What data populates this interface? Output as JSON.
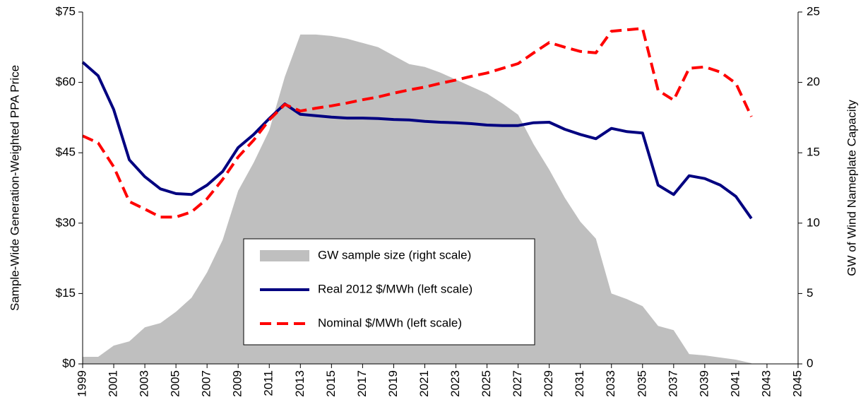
{
  "chart_data": {
    "type": "line-area",
    "y_label": "Sample-Wide Generation-Weighted PPA Price",
    "y2_label": "GW of Wind Nameplate Capacity",
    "x": [
      1999,
      2000,
      2001,
      2002,
      2003,
      2004,
      2005,
      2006,
      2007,
      2008,
      2009,
      2010,
      2011,
      2012,
      2013,
      2014,
      2015,
      2016,
      2017,
      2018,
      2019,
      2020,
      2021,
      2022,
      2023,
      2024,
      2025,
      2026,
      2027,
      2028,
      2029,
      2030,
      2031,
      2032,
      2033,
      2034,
      2035,
      2036,
      2037,
      2038,
      2039,
      2040,
      2041,
      2042
    ],
    "xlim": [
      1999,
      2045
    ],
    "xticks": [
      1999,
      2001,
      2003,
      2005,
      2007,
      2009,
      2011,
      2013,
      2015,
      2017,
      2019,
      2021,
      2023,
      2025,
      2027,
      2029,
      2031,
      2033,
      2035,
      2037,
      2039,
      2041,
      2043,
      2045
    ],
    "ylim": [
      0,
      75
    ],
    "yticks": [
      {
        "value": 0,
        "label": "$0"
      },
      {
        "value": 15,
        "label": "$15"
      },
      {
        "value": 30,
        "label": "$30"
      },
      {
        "value": 45,
        "label": "$45"
      },
      {
        "value": 60,
        "label": "$60"
      },
      {
        "value": 75,
        "label": "$75"
      }
    ],
    "y2lim": [
      0,
      25
    ],
    "y2ticks": [
      0,
      5,
      10,
      15,
      20,
      25
    ],
    "series": [
      {
        "name": "GW sample size (right scale)",
        "kind": "area",
        "axis": "y2",
        "color": "#bfbfbf",
        "values": [
          0.5,
          0.5,
          1.3,
          1.6,
          2.6,
          2.9,
          3.7,
          4.7,
          6.5,
          8.8,
          12.3,
          14.3,
          16.6,
          20.4,
          23.4,
          23.4,
          23.3,
          23.1,
          22.8,
          22.5,
          21.9,
          21.3,
          21.1,
          20.7,
          20.2,
          19.7,
          19.2,
          18.5,
          17.7,
          15.6,
          13.8,
          11.8,
          10.1,
          8.9,
          5.0,
          4.6,
          4.1,
          2.7,
          2.4,
          0.7,
          0.6,
          0.45,
          0.3,
          0.05
        ]
      },
      {
        "name": "Real 2012 $/MWh (left scale)",
        "kind": "line",
        "color": "#000080",
        "values": [
          64.3,
          61.4,
          54.2,
          43.5,
          39.9,
          37.3,
          36.3,
          36.1,
          38.1,
          41.0,
          46.1,
          48.9,
          52.3,
          55.4,
          53.2,
          52.9,
          52.6,
          52.4,
          52.4,
          52.3,
          52.1,
          52.0,
          51.7,
          51.5,
          51.4,
          51.2,
          50.9,
          50.8,
          50.8,
          51.4,
          51.5,
          50.0,
          48.9,
          48.0,
          50.2,
          49.5,
          49.2,
          38.1,
          36.1,
          40.1,
          39.5,
          38.1,
          35.7,
          31.0
        ]
      },
      {
        "name": "Nominal $/MWh (left scale)",
        "kind": "dashed",
        "color": "#ff0000",
        "values": [
          48.6,
          47.1,
          42.0,
          34.6,
          33.0,
          31.3,
          31.3,
          32.4,
          35.2,
          39.3,
          44.1,
          47.7,
          52.0,
          55.3,
          53.9,
          54.5,
          55.0,
          55.6,
          56.3,
          56.9,
          57.7,
          58.4,
          59.0,
          59.8,
          60.5,
          61.3,
          62.0,
          63.0,
          64.0,
          66.3,
          68.5,
          67.5,
          66.6,
          66.3,
          70.9,
          71.2,
          71.5,
          58.3,
          56.2,
          63.0,
          63.3,
          62.2,
          59.8,
          52.7
        ]
      }
    ]
  }
}
